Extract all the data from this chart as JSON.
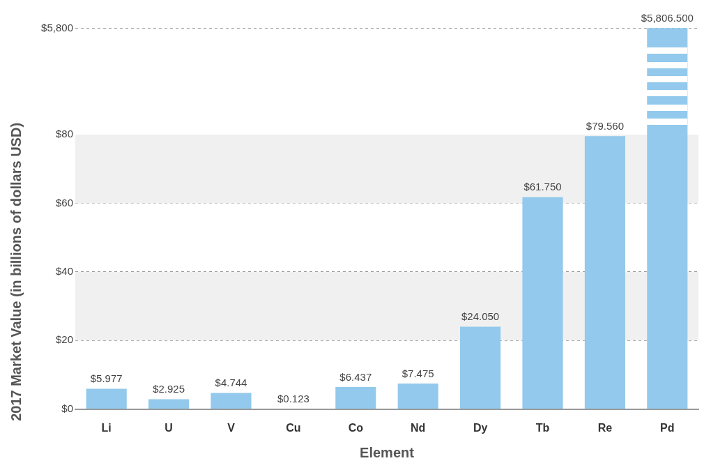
{
  "chart_data": [
    {
      "type": "bar",
      "categories": [
        null,
        null,
        null,
        null,
        null,
        null,
        null,
        null,
        null,
        null
      ],
      "values": [
        null,
        null,
        null,
        null,
        null,
        null,
        null,
        null,
        null,
        5806.5
      ],
      "value_labels": [
        null,
        null,
        null,
        null,
        null,
        null,
        null,
        null,
        null,
        "$5,806.500"
      ],
      "color": "#92c9ec",
      "ylim": [
        0,
        5830
      ],
      "yticks": [
        {
          "value": 0,
          "label": "$0"
        },
        {
          "value": 5800,
          "label": "$5,800"
        }
      ],
      "tick_labels": "y",
      "grid": "y",
      "legend": false
    },
    {
      "type": "bar",
      "xlabel": "Element",
      "ylabel": "2017 Market Value (in billions of dollars USD)",
      "categories": [
        "Li",
        "U",
        "V",
        "Cu",
        "Co",
        "Nd",
        "Dy",
        "Tb",
        "Re",
        "Pd"
      ],
      "values": [
        5.977,
        2.925,
        4.744,
        0.123,
        6.437,
        7.475,
        24.05,
        61.75,
        79.56,
        null
      ],
      "value_labels": [
        "$5.977",
        "$2.925",
        "$4.744",
        "$0.123",
        "$6.437",
        "$7.475",
        "$24.050",
        "$61.750",
        "$79.560",
        null
      ],
      "color": "#92c9ec",
      "ylim": [
        0,
        80
      ],
      "yticks": [
        {
          "value": 0,
          "label": null
        },
        {
          "value": 20,
          "label": "$20"
        },
        {
          "value": 40,
          "label": "$40"
        },
        {
          "value": 60,
          "label": "$60"
        },
        {
          "value": 80,
          "label": "$80"
        }
      ],
      "bands": [
        {
          "axis": "y",
          "from": 20,
          "to": 40,
          "color": "#f0f0f0"
        },
        {
          "axis": "y",
          "from": 60,
          "to": 80,
          "color": "#f0f0f0"
        }
      ],
      "grid": "y",
      "legend": false
    }
  ]
}
